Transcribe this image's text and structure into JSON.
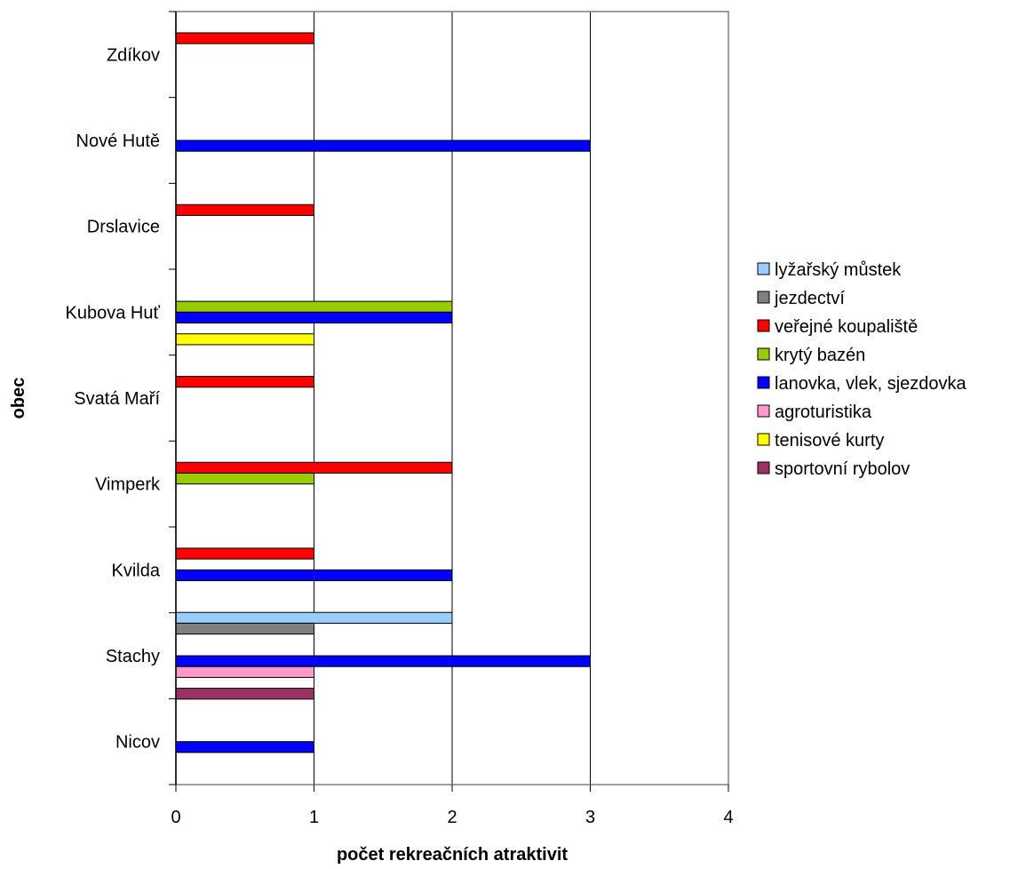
{
  "chart_data": {
    "type": "bar",
    "orientation": "horizontal",
    "xlabel": "počet rekreačních atraktivit",
    "ylabel": "obec",
    "xlim": [
      0,
      4
    ],
    "x_ticks": [
      0,
      1,
      2,
      3,
      4
    ],
    "grid": "vertical",
    "legend_position": "right",
    "categories": [
      "Nicov",
      "Stachy",
      "Kvilda",
      "Vimperk",
      "Svatá Maří",
      "Kubova Huť",
      "Drslavice",
      "Nové Hutě",
      "Zdíkov"
    ],
    "series": [
      {
        "name": "lyžařský můstek",
        "color": "#99ccff",
        "values": [
          0,
          2,
          0,
          0,
          0,
          0,
          0,
          0,
          0
        ]
      },
      {
        "name": "jezdectví",
        "color": "#808080",
        "values": [
          0,
          1,
          0,
          0,
          0,
          0,
          0,
          0,
          0
        ]
      },
      {
        "name": "veřejné koupaliště",
        "color": "#ff0000",
        "values": [
          0,
          0,
          1,
          2,
          1,
          0,
          1,
          0,
          1
        ]
      },
      {
        "name": "krytý bazén",
        "color": "#99cc00",
        "values": [
          0,
          0,
          0,
          1,
          0,
          2,
          0,
          0,
          0
        ]
      },
      {
        "name": "lanovka, vlek, sjezdovka",
        "color": "#0000ff",
        "values": [
          1,
          3,
          2,
          0,
          0,
          2,
          0,
          3,
          0
        ]
      },
      {
        "name": "agroturistika",
        "color": "#ff99cc",
        "values": [
          0,
          1,
          0,
          0,
          0,
          0,
          0,
          0,
          0
        ]
      },
      {
        "name": "tenisové kurty",
        "color": "#ffff00",
        "values": [
          0,
          0,
          0,
          0,
          0,
          1,
          0,
          0,
          0
        ]
      },
      {
        "name": "sportovní rybolov",
        "color": "#993366",
        "values": [
          0,
          1,
          0,
          0,
          0,
          0,
          0,
          0,
          0
        ]
      }
    ]
  }
}
